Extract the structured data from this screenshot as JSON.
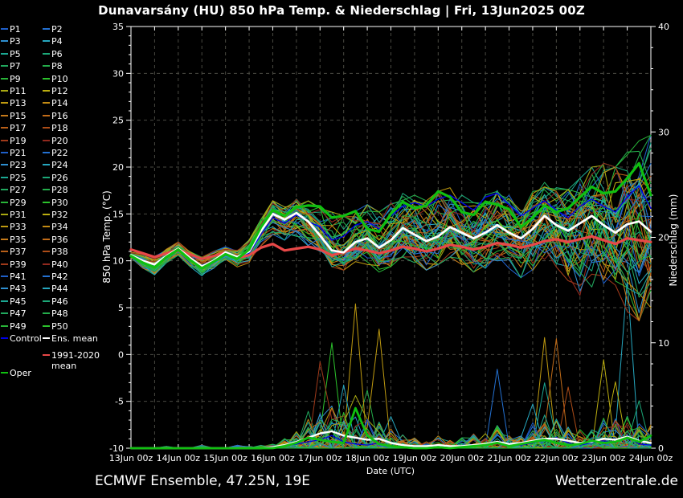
{
  "title": "Dunavarsány  (HU)  850 hPa Temp. & Niederschlag | Fri, 13Jun2025 00Z",
  "footer": {
    "left": "ECMWF Ensemble, 47.25N, 19E",
    "right": "Wetterzentrale.de"
  },
  "colors": {
    "background": "#000000",
    "text": "#ffffff",
    "grid": "#4a4a42",
    "frame": "#ffffff",
    "control": "#0000e8",
    "ens_mean": "#ffffff",
    "oper": "#10c010",
    "climate_mean": "#e84848"
  },
  "legend": {
    "member_prefix": "P",
    "member_count": 50,
    "palette": [
      "#1f5fc8",
      "#2471d2",
      "#2e8fd0",
      "#26a7bf",
      "#1ba893",
      "#1ca878",
      "#21a85e",
      "#24ad4b",
      "#28b438",
      "#2cc22c",
      "#a8a812",
      "#bcae10",
      "#bf9a10",
      "#c28a14",
      "#c57a1a",
      "#c26c18",
      "#b85f18",
      "#ad4d18",
      "#a03a1a",
      "#92291e"
    ],
    "control_label": "Control",
    "ens_mean_label": "Ens. mean",
    "climate_label_1": "1991-2020",
    "climate_label_2": "mean",
    "oper_label": "Oper"
  },
  "chart_data": {
    "type": "line",
    "x_hours_step": 6,
    "x_total_hours": 264,
    "x_tick_labels": [
      "13Jun 00z",
      "14Jun 00z",
      "15Jun 00z",
      "16Jun 00z",
      "17Jun 00z",
      "18Jun 00z",
      "19Jun 00z",
      "20Jun 00z",
      "21Jun 00z",
      "22Jun 00z",
      "23Jun 00z",
      "24Jun 00z"
    ],
    "xlabel": "Date (UTC)",
    "left_axis": {
      "label": "850 hPa Temp. (°C)",
      "min": -10,
      "max": 35,
      "major": 5,
      "minor": 1
    },
    "right_axis": {
      "label": "Niederschlag (mm)",
      "min": 0,
      "max": 40,
      "major": 10,
      "minor": 2
    },
    "grid": {
      "vertical_every_hours": 12,
      "horizontal_every_degC": 5
    },
    "members": 50,
    "series": {
      "ens_mean_temp": [
        10.6,
        10.0,
        9.6,
        10.5,
        11.3,
        10.3,
        9.4,
        10.0,
        10.9,
        10.4,
        11.0,
        13.2,
        15.0,
        14.4,
        15.1,
        14.2,
        12.7,
        11.1,
        10.9,
        12.0,
        12.4,
        11.4,
        12.2,
        13.5,
        12.8,
        12.1,
        12.6,
        13.6,
        13.0,
        12.4,
        13.0,
        13.8,
        13.0,
        12.4,
        13.4,
        14.8,
        13.8,
        13.2,
        14.0,
        14.8,
        13.8,
        13.0,
        13.9,
        14.2,
        13.1
      ],
      "oper_temp": [
        10.5,
        9.8,
        9.3,
        10.4,
        11.2,
        10.1,
        9.2,
        9.9,
        10.7,
        10.2,
        11.2,
        13.6,
        15.4,
        14.8,
        15.7,
        15.9,
        15.8,
        14.6,
        14.8,
        15.3,
        13.4,
        13.1,
        15.0,
        16.3,
        15.6,
        15.9,
        17.4,
        16.8,
        15.2,
        14.9,
        16.3,
        16.0,
        15.5,
        13.6,
        14.6,
        15.9,
        15.2,
        15.6,
        16.8,
        17.9,
        17.2,
        17.4,
        18.8,
        20.4,
        17.0
      ],
      "control_temp": [
        10.6,
        9.9,
        9.5,
        10.4,
        11.2,
        10.2,
        9.3,
        10.0,
        10.8,
        10.3,
        10.8,
        12.8,
        14.6,
        14.0,
        14.9,
        14.2,
        13.6,
        12.2,
        12.6,
        13.8,
        14.2,
        13.4,
        14.8,
        15.8,
        16.2,
        15.8,
        16.6,
        17.0,
        16.2,
        15.4,
        16.8,
        17.2,
        16.0,
        14.8,
        15.6,
        16.4,
        15.4,
        14.6,
        15.8,
        16.6,
        15.8,
        15.2,
        16.8,
        18.0,
        15.6
      ],
      "climate_mean_temp": [
        11.2,
        10.8,
        10.4,
        10.8,
        11.2,
        10.7,
        10.2,
        10.5,
        10.9,
        10.3,
        10.6,
        11.4,
        11.8,
        11.1,
        11.3,
        11.5,
        11.2,
        10.6,
        10.9,
        11.3,
        11.1,
        10.8,
        11.1,
        11.5,
        11.3,
        11.0,
        11.3,
        11.7,
        11.5,
        11.2,
        11.5,
        11.9,
        11.7,
        11.4,
        11.7,
        12.1,
        12.3,
        12.0,
        12.3,
        12.6,
        12.2,
        11.8,
        12.4,
        12.2,
        12.0
      ],
      "env_min_temp": [
        10.3,
        9.2,
        8.5,
        9.7,
        10.6,
        9.4,
        8.4,
        9.2,
        9.9,
        9.3,
        9.8,
        11.6,
        12.8,
        12.2,
        12.6,
        11.6,
        10.4,
        9.2,
        9.0,
        9.8,
        9.6,
        8.8,
        9.4,
        10.4,
        9.8,
        9.0,
        9.6,
        10.4,
        9.6,
        8.8,
        9.2,
        10.0,
        9.2,
        8.2,
        8.8,
        9.8,
        8.8,
        7.6,
        6.3,
        7.2,
        6.5,
        6.0,
        4.6,
        3.6,
        5.0
      ],
      "env_max_temp": [
        10.9,
        10.7,
        10.5,
        11.3,
        12.0,
        11.0,
        10.4,
        11.0,
        11.5,
        11.2,
        12.2,
        14.4,
        16.4,
        15.8,
        16.6,
        16.4,
        16.4,
        15.2,
        14.8,
        15.4,
        16.0,
        15.2,
        16.2,
        17.2,
        17.0,
        16.4,
        17.4,
        17.8,
        17.0,
        16.2,
        17.2,
        17.8,
        17.0,
        16.2,
        17.4,
        18.4,
        17.8,
        17.6,
        18.8,
        20.0,
        20.4,
        20.0,
        21.6,
        22.8,
        23.4
      ],
      "ens_mean_precip": [
        0,
        0,
        0,
        0,
        0,
        0,
        0,
        0,
        0,
        0,
        0,
        0,
        0.1,
        0.3,
        0.6,
        1.0,
        1.4,
        1.6,
        1.2,
        1.0,
        0.8,
        0.9,
        0.5,
        0.3,
        0.2,
        0.2,
        0.3,
        0.2,
        0.2,
        0.3,
        0.4,
        0.6,
        0.4,
        0.5,
        0.7,
        0.9,
        0.9,
        0.7,
        0.5,
        0.6,
        0.9,
        0.8,
        1.1,
        0.7,
        0.5
      ],
      "oper_precip": [
        0,
        0,
        0,
        0,
        0,
        0,
        0,
        0,
        0,
        0,
        0,
        0,
        0,
        0.2,
        0.5,
        1.0,
        0.8,
        0.6,
        0.5,
        3.8,
        1.2,
        0.4,
        0.2,
        0.1,
        0,
        0,
        0.1,
        0,
        0.1,
        0.2,
        0.3,
        0.5,
        0.2,
        0.4,
        0.6,
        0.8,
        0.5,
        0.3,
        0.4,
        0.7,
        0.5,
        0.6,
        1.0,
        0.6,
        1.2
      ],
      "control_precip": [
        0,
        0,
        0,
        0,
        0,
        0,
        0,
        0,
        0,
        0,
        0,
        0,
        0.1,
        0.2,
        0.4,
        0.6,
        0.8,
        1.2,
        0.6,
        0.4,
        0.3,
        0.5,
        0.2,
        0.1,
        0.1,
        0,
        0.2,
        0.1,
        0.1,
        0.2,
        0.3,
        0.6,
        0.3,
        0.3,
        0.5,
        0.8,
        1.0,
        0.5,
        0.3,
        0.5,
        0.7,
        0.5,
        1.2,
        0.4,
        0.3
      ],
      "precip_bg_max": [
        0,
        0,
        0,
        0.2,
        0,
        0,
        0.3,
        0,
        0,
        0.3,
        0.2,
        0.3,
        0.4,
        1.0,
        2.0,
        2.8,
        4.0,
        4.5,
        3.5,
        3.0,
        3.0,
        2.5,
        2.0,
        1.4,
        1.0,
        0.8,
        1.2,
        0.8,
        1.0,
        1.4,
        1.8,
        2.2,
        1.6,
        2.0,
        2.6,
        3.2,
        3.0,
        2.4,
        2.0,
        2.4,
        3.0,
        2.8,
        3.6,
        2.6,
        2.0
      ]
    },
    "precip_spikes": [
      {
        "i": 15,
        "mm": 3.5,
        "member": 6
      },
      {
        "i": 16,
        "mm": 8.2,
        "member": 18
      },
      {
        "i": 17,
        "mm": 10.0,
        "member": 9
      },
      {
        "i": 17,
        "mm": 4.0,
        "member": 2
      },
      {
        "i": 18,
        "mm": 6.0,
        "member": 23
      },
      {
        "i": 19,
        "mm": 13.7,
        "member": 12
      },
      {
        "i": 19,
        "mm": 5.0,
        "member": 30
      },
      {
        "i": 20,
        "mm": 5.5,
        "member": 7
      },
      {
        "i": 21,
        "mm": 11.3,
        "member": 32
      },
      {
        "i": 22,
        "mm": 3.0,
        "member": 3
      },
      {
        "i": 31,
        "mm": 7.5,
        "member": 21
      },
      {
        "i": 34,
        "mm": 4.2,
        "member": 23
      },
      {
        "i": 35,
        "mm": 10.5,
        "member": 12
      },
      {
        "i": 35,
        "mm": 6.2,
        "member": 4
      },
      {
        "i": 36,
        "mm": 10.4,
        "member": 15
      },
      {
        "i": 37,
        "mm": 5.8,
        "member": 17
      },
      {
        "i": 40,
        "mm": 8.4,
        "member": 11
      },
      {
        "i": 41,
        "mm": 6.3,
        "member": 31
      },
      {
        "i": 42,
        "mm": 16.0,
        "member": 3
      },
      {
        "i": 43,
        "mm": 4.5,
        "member": 25
      },
      {
        "i": 44,
        "mm": 2.2,
        "member": 13
      }
    ]
  }
}
